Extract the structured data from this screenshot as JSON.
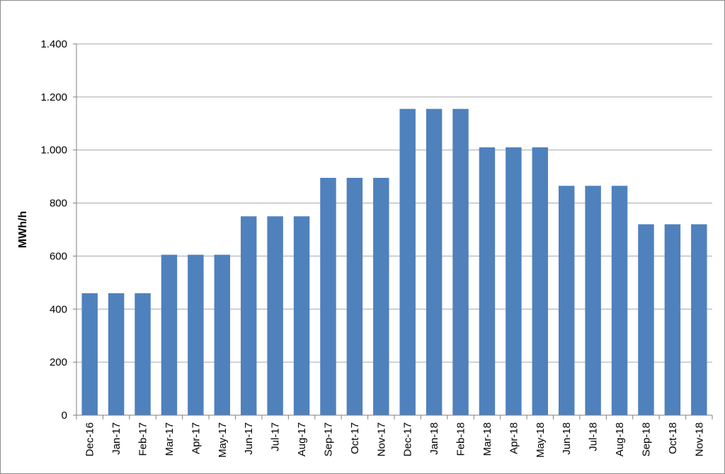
{
  "chart_data": {
    "type": "bar",
    "title": "",
    "xlabel": "",
    "ylabel": "MWh/h",
    "ylim": [
      0,
      1400
    ],
    "yticks": [
      0,
      200,
      400,
      600,
      800,
      1000,
      1200,
      1400
    ],
    "ytick_labels": [
      "0",
      "200",
      "400",
      "600",
      "800",
      "1.000",
      "1.200",
      "1.400"
    ],
    "grid": true,
    "legend": "none",
    "bar_color": "#4f81bd",
    "categories": [
      "Dec-16",
      "Jan-17",
      "Feb-17",
      "Mar-17",
      "Apr-17",
      "May-17",
      "Jun-17",
      "Jul-17",
      "Aug-17",
      "Sep-17",
      "Oct-17",
      "Nov-17",
      "Dec-17",
      "Jan-18",
      "Feb-18",
      "Mar-18",
      "Apr-18",
      "May-18",
      "Jun-18",
      "Jul-18",
      "Aug-18",
      "Sep-18",
      "Oct-18",
      "Nov-18"
    ],
    "values": [
      460,
      460,
      460,
      605,
      605,
      605,
      750,
      750,
      750,
      895,
      895,
      895,
      1155,
      1155,
      1155,
      1010,
      1010,
      1010,
      865,
      865,
      865,
      720,
      720,
      720
    ]
  }
}
